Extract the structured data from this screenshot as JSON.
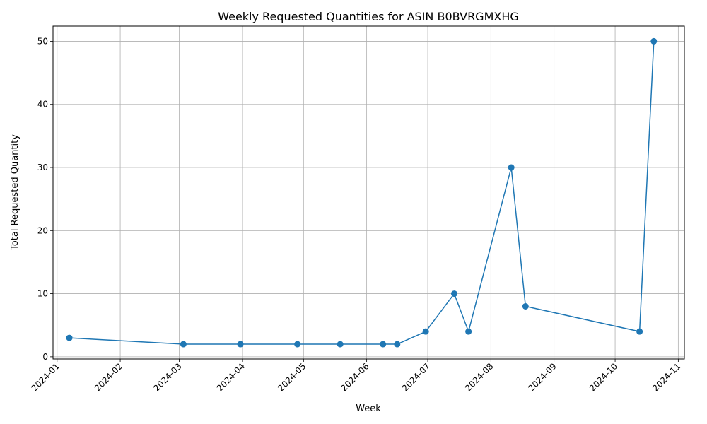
{
  "chart_data": {
    "type": "line",
    "title": "Weekly Requested Quantities for ASIN B0BVRGMXHG",
    "xlabel": "Week",
    "ylabel": "Total Requested Quantity",
    "x_ticks": [
      "2024-01",
      "2024-02",
      "2024-03",
      "2024-04",
      "2024-05",
      "2024-06",
      "2024-07",
      "2024-08",
      "2024-09",
      "2024-10",
      "2024-11"
    ],
    "y_ticks": [
      0,
      10,
      20,
      30,
      40,
      50
    ],
    "ylim": [
      -0.35,
      52.4
    ],
    "xlim": [
      "2023-12-30",
      "2024-11-04"
    ],
    "grid": true,
    "marker": "circle",
    "color": "#1f77b4",
    "series": [
      {
        "x": [
          "2024-01-07",
          "2024-03-03",
          "2024-03-31",
          "2024-04-28",
          "2024-05-19",
          "2024-06-09",
          "2024-06-16",
          "2024-06-30",
          "2024-07-14",
          "2024-07-21",
          "2024-08-11",
          "2024-08-18",
          "2024-10-13",
          "2024-10-20"
        ],
        "y": [
          3,
          2,
          2,
          2,
          2,
          2,
          2,
          4,
          10,
          4,
          30,
          8,
          4,
          50
        ]
      }
    ]
  }
}
